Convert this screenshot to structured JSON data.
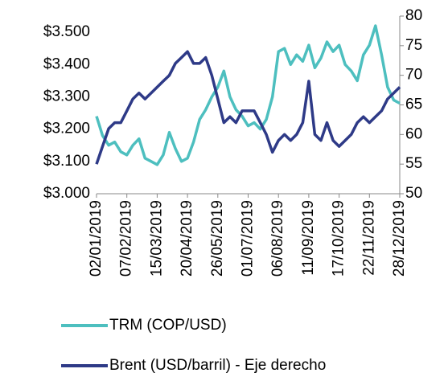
{
  "chart_data": {
    "type": "line",
    "categories": [
      "02/01/2019",
      null,
      null,
      null,
      null,
      "07/02/2019",
      null,
      null,
      null,
      null,
      "15/03/2019",
      null,
      null,
      null,
      null,
      "20/04/2019",
      null,
      null,
      null,
      null,
      "26/05/2019",
      null,
      null,
      null,
      null,
      "01/07/2019",
      null,
      null,
      null,
      null,
      "06/08/2019",
      null,
      null,
      null,
      null,
      "11/09/2019",
      null,
      null,
      null,
      null,
      "17/10/2019",
      null,
      null,
      null,
      null,
      "22/11/2019",
      null,
      null,
      null,
      null,
      "28/12/2019"
    ],
    "series": [
      {
        "name": "TRM (COP/USD)",
        "color": "#4dbfbf",
        "values": [
          3240,
          3180,
          3150,
          3160,
          3130,
          3120,
          3150,
          3170,
          3110,
          3100,
          3090,
          3120,
          3190,
          3140,
          3100,
          3110,
          3160,
          3230,
          3260,
          3300,
          3330,
          3380,
          3300,
          3260,
          3240,
          3210,
          3220,
          3200,
          3230,
          3300,
          3440,
          3450,
          3400,
          3430,
          3410,
          3460,
          3390,
          3420,
          3470,
          3440,
          3460,
          3400,
          3380,
          3350,
          3430,
          3460,
          3520,
          3430,
          3330,
          3290,
          3280
        ]
      },
      {
        "name": "Brent (USD/barril) - Eje derecho",
        "color": "#2e3a87",
        "axis": "y2",
        "values": [
          55,
          58,
          61,
          62,
          62,
          64,
          66,
          67,
          66,
          67,
          68,
          69,
          70,
          72,
          73,
          74,
          72,
          72,
          73,
          70,
          66,
          62,
          63,
          62,
          64,
          64,
          64,
          62,
          60,
          57,
          59,
          60,
          59,
          60,
          62,
          69,
          60,
          59,
          62,
          59,
          58,
          59,
          60,
          62,
          63,
          62,
          63,
          64,
          66,
          67,
          68
        ]
      }
    ],
    "ylim": [
      3000,
      3550
    ],
    "yticks": [
      {
        "value": 3000,
        "label": "$3.000"
      },
      {
        "value": 3100,
        "label": "$3.100"
      },
      {
        "value": 3200,
        "label": "$3.200"
      },
      {
        "value": 3300,
        "label": "$3.300"
      },
      {
        "value": 3400,
        "label": "$3.400"
      },
      {
        "value": 3500,
        "label": "$3.500"
      }
    ],
    "y2lim": [
      50,
      80
    ],
    "y2ticks": [
      50,
      55,
      60,
      65,
      70,
      75,
      80
    ]
  }
}
